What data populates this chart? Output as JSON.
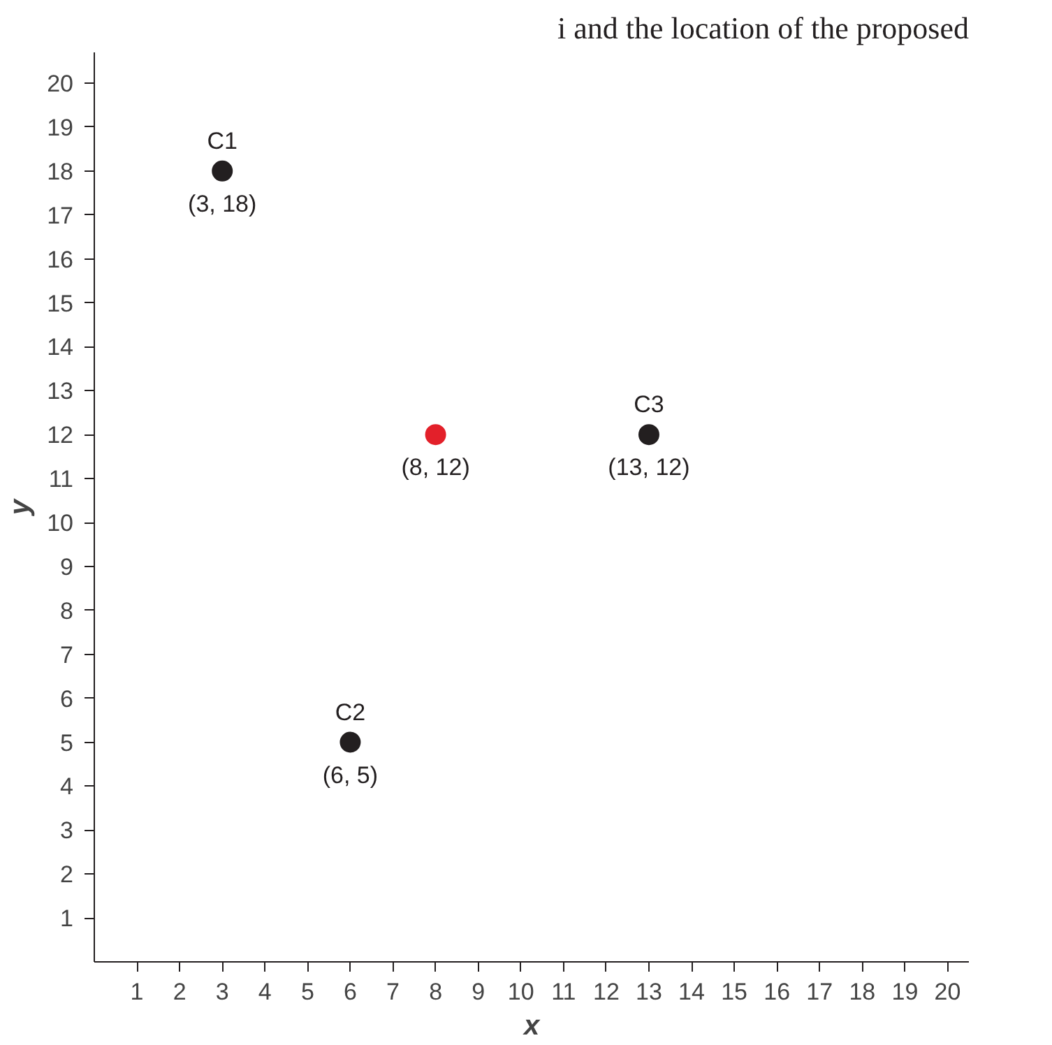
{
  "chart_data": {
    "type": "scatter",
    "title": "i and the location of the proposed",
    "xlabel": "x",
    "ylabel": "y",
    "x": [
      3,
      6,
      13,
      8
    ],
    "values": [
      18,
      5,
      12,
      12
    ],
    "colors": [
      "#231f20",
      "#231f20",
      "#231f20",
      "#e3202a"
    ],
    "value_labels": [
      "(3, 18)",
      "(6, 5)",
      "(13, 12)",
      "(8, 12)"
    ],
    "annotations": [
      {
        "text": "C1",
        "x": 3,
        "y": 18
      },
      {
        "text": "C2",
        "x": 6,
        "y": 5
      },
      {
        "text": "C3",
        "x": 13,
        "y": 12
      }
    ],
    "xlim": [
      0,
      20.5
    ],
    "ylim": [
      0,
      20.7
    ],
    "xticks": [
      1,
      2,
      3,
      4,
      5,
      6,
      7,
      8,
      9,
      10,
      11,
      12,
      13,
      14,
      15,
      16,
      17,
      18,
      19,
      20
    ],
    "yticks": [
      1,
      2,
      3,
      4,
      5,
      6,
      7,
      8,
      9,
      10,
      11,
      12,
      13,
      14,
      15,
      16,
      17,
      18,
      19,
      20
    ],
    "grid": false,
    "marker": "circle"
  }
}
